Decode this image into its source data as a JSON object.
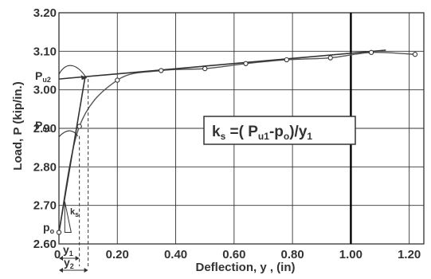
{
  "chart_data": {
    "type": "line",
    "title": "",
    "xlabel": "Deflection, y , (in)",
    "ylabel": "Load, P (kip/in.)",
    "xlim": [
      0,
      1.25
    ],
    "ylim": [
      2.6,
      3.2
    ],
    "xticks": [
      "0.20",
      "0.40",
      "0.60",
      "0.80",
      "1.00",
      "1.20"
    ],
    "xtick_values": [
      0.2,
      0.4,
      0.6,
      0.8,
      1.0,
      1.2
    ],
    "xtick_zero": "0",
    "yticks": [
      "2.60",
      "2.70",
      "2.80",
      "2.90",
      "3.00",
      "3.10",
      "3.20"
    ],
    "ytick_values": [
      2.6,
      2.7,
      2.8,
      2.9,
      3.0,
      3.1,
      3.2
    ],
    "grid": true,
    "reference_x": 1.0,
    "series": [
      {
        "name": "",
        "style": "curve-with-markers",
        "x": [
          0.0,
          0.07,
          0.2,
          0.35,
          0.5,
          0.64,
          0.78,
          0.93,
          1.07,
          1.22
        ],
        "y": [
          2.63,
          2.905,
          3.025,
          3.05,
          3.055,
          3.068,
          3.078,
          3.083,
          3.097,
          3.092
        ]
      },
      {
        "name": "",
        "style": "linear-fit",
        "x": [
          0.0,
          1.12
        ],
        "y": [
          3.028,
          3.103
        ]
      },
      {
        "name": "",
        "style": "tangent",
        "x": [
          0.0,
          0.09
        ],
        "y": [
          2.63,
          3.035
        ]
      }
    ],
    "annotations": {
      "p0_label": "p",
      "p0_sub": "o",
      "pu1_label": "P",
      "pu1_sub": "u1",
      "pu2_label": "P",
      "pu2_sub": "u2",
      "ks_label": "k",
      "ks_sub": "s",
      "y1_label": "y",
      "y1_sub": "1",
      "y2_label": "y",
      "y2_sub": "2",
      "pu1_value": 2.88,
      "pu2_value": 3.028,
      "y1_value": 0.07,
      "y2_value": 0.1,
      "formula": {
        "k": "k",
        "k_sub": "s",
        "eq": " =( P",
        "p_sub": "u1",
        "minus": "-p",
        "o_sub": "o",
        "close": ")/y",
        "y_sub": "1"
      }
    }
  },
  "colors": {
    "axis": "#333333",
    "grid": "#333333",
    "curve": "#555555",
    "marker_fill": "#ffffff",
    "reference_line": "#000000"
  }
}
